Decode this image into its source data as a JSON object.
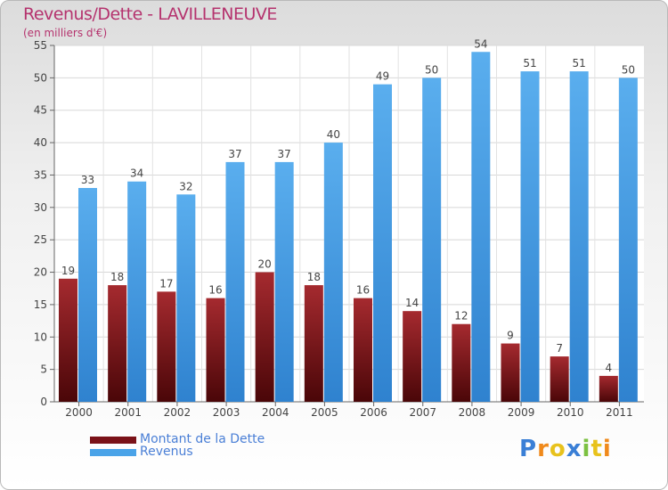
{
  "header": {
    "title": "Revenus/Dette - LAVILLENEUVE",
    "subtitle": "(en milliers d'€)"
  },
  "colors": {
    "dette": "#7a1218",
    "revenus": "#4aa3e8",
    "title": "#b5336e"
  },
  "chart_data": {
    "type": "bar",
    "categories": [
      "2000",
      "2001",
      "2002",
      "2003",
      "2004",
      "2005",
      "2006",
      "2007",
      "2008",
      "2009",
      "2010",
      "2011"
    ],
    "series": [
      {
        "name": "Montant de la Dette",
        "values": [
          19,
          18,
          17,
          16,
          20,
          18,
          16,
          14,
          12,
          9,
          7,
          4
        ]
      },
      {
        "name": "Revenus",
        "values": [
          33,
          34,
          32,
          37,
          37,
          40,
          49,
          50,
          54,
          51,
          51,
          50
        ]
      }
    ],
    "ylim": [
      0,
      55
    ],
    "yticks": [
      0,
      5,
      10,
      15,
      20,
      25,
      30,
      35,
      40,
      45,
      50,
      55
    ],
    "grid": true,
    "legend": "bottom-left"
  },
  "logo": {
    "text": "Proxiti",
    "letters": [
      "P",
      "r",
      "o",
      "x",
      "i",
      "t",
      "i"
    ],
    "colors": [
      "#3a7fd6",
      "#f08a1c",
      "#e8c21c",
      "#3a7fd6",
      "#7cc142",
      "#e8c21c",
      "#f08a1c"
    ]
  }
}
